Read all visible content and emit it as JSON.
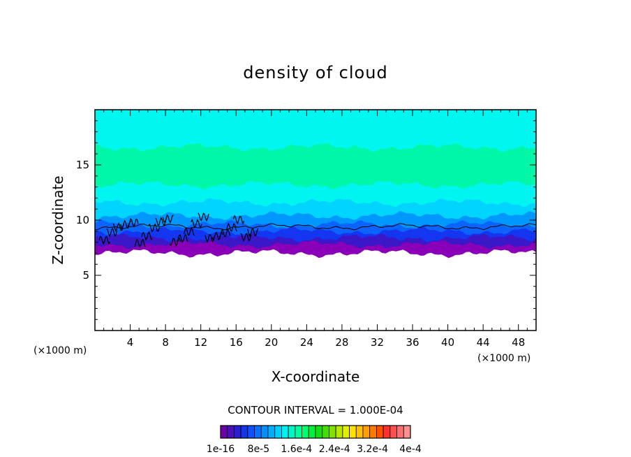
{
  "chart_data": {
    "type": "heatmap",
    "title": "density of cloud",
    "xlabel": "X-coordinate",
    "ylabel": "Z-coordinate",
    "x_unit": "(×1000 m)",
    "y_unit": "(×1000 m)",
    "xlim": [
      0,
      50
    ],
    "ylim": [
      0,
      20
    ],
    "x_ticks": [
      4,
      8,
      12,
      16,
      20,
      24,
      28,
      32,
      36,
      40,
      44,
      48
    ],
    "y_ticks": [
      5,
      10,
      15
    ],
    "contour_interval": "CONTOUR INTERVAL = 1.000E-04",
    "colorbar": {
      "labels": [
        "1e-16",
        "8e-5",
        "1.6e-4",
        "2.4e-4",
        "3.2e-4",
        "4e-4"
      ],
      "colors": [
        "#6a00a8",
        "#4a0fb8",
        "#2a1fd0",
        "#1834e8",
        "#1050ff",
        "#0870ff",
        "#0090ff",
        "#00b0ff",
        "#00d0ff",
        "#00f0f0",
        "#00f5c8",
        "#00ffa0",
        "#00ff70",
        "#00f040",
        "#10e010",
        "#40e000",
        "#80e000",
        "#b8e800",
        "#e0f000",
        "#ffe000",
        "#ffc000",
        "#ffa000",
        "#ff7a00",
        "#ff5000",
        "#ff3030",
        "#ff5050",
        "#ff7070",
        "#ff9090"
      ]
    },
    "cloud_layers": [
      {
        "z_bottom": 0,
        "z_top": 7.0,
        "color": "#ffffff"
      },
      {
        "z_bottom": 7.0,
        "z_top": 7.8,
        "color": "#8a00b8"
      },
      {
        "z_bottom": 7.8,
        "z_top": 8.4,
        "color": "#3a18c8"
      },
      {
        "z_bottom": 8.4,
        "z_top": 9.0,
        "color": "#1436f0"
      },
      {
        "z_bottom": 9.0,
        "z_top": 9.6,
        "color": "#0c64ff"
      },
      {
        "z_bottom": 9.6,
        "z_top": 10.4,
        "color": "#0098ff"
      },
      {
        "z_bottom": 10.4,
        "z_top": 11.6,
        "color": "#00d4ff"
      },
      {
        "z_bottom": 11.6,
        "z_top": 13.2,
        "color": "#00f4f0"
      },
      {
        "z_bottom": 13.2,
        "z_top": 16.6,
        "color": "#00f7a8"
      },
      {
        "z_bottom": 16.6,
        "z_top": 20.0,
        "color": "#00f7f0"
      }
    ],
    "contour_line_z": 9.4
  }
}
